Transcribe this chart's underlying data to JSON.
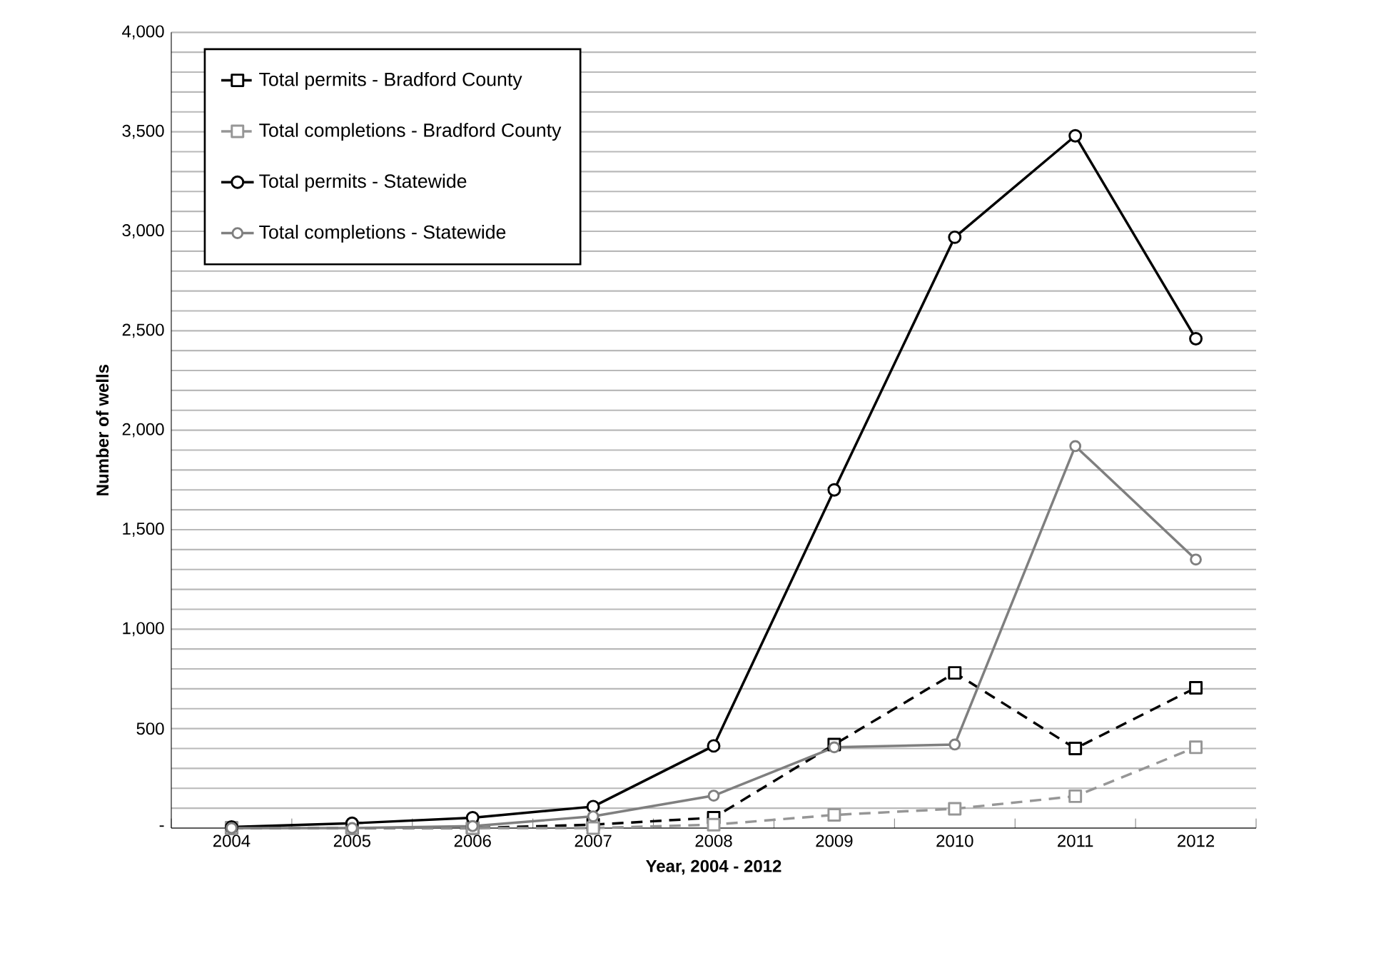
{
  "chart_data": {
    "type": "line",
    "xlabel": "Year, 2004 - 2012",
    "ylabel": "Number of wells",
    "categories": [
      "2004",
      "2005",
      "2006",
      "2007",
      "2008",
      "2009",
      "2010",
      "2011",
      "2012"
    ],
    "series": [
      {
        "name": "Total permits - Bradford County",
        "color": "#000000",
        "marker": "square",
        "line_style": "dashed",
        "values": [
          0,
          0,
          0,
          17,
          52,
          420,
          780,
          400,
          705
        ]
      },
      {
        "name": "Total completions - Bradford County",
        "color": "#969696",
        "marker": "square",
        "line_style": "dashed",
        "values": [
          0,
          0,
          0,
          0,
          17,
          66,
          97,
          160,
          406
        ]
      },
      {
        "name": "Total permits - Statewide",
        "color": "#000000",
        "marker": "circle",
        "line_style": "solid",
        "values": [
          5,
          24,
          52,
          108,
          413,
          1700,
          2970,
          3480,
          2460
        ]
      },
      {
        "name": "Total completions - Statewide",
        "color": "#7f7f7f",
        "marker": "circle",
        "line_style": "solid",
        "values": [
          0,
          0,
          10,
          59,
          163,
          406,
          420,
          1920,
          1350
        ]
      }
    ],
    "ylim": [
      0,
      4000
    ],
    "yticks": [
      {
        "value": 0,
        "label": "-"
      },
      {
        "value": 100,
        "label": null
      },
      {
        "value": 200,
        "label": null
      },
      {
        "value": 300,
        "label": null
      },
      {
        "value": 400,
        "label": null
      },
      {
        "value": 500,
        "label": "500"
      },
      {
        "value": 600,
        "label": null
      },
      {
        "value": 700,
        "label": null
      },
      {
        "value": 800,
        "label": null
      },
      {
        "value": 900,
        "label": null
      },
      {
        "value": 1000,
        "label": "1,000"
      },
      {
        "value": 1100,
        "label": null
      },
      {
        "value": 1200,
        "label": null
      },
      {
        "value": 1300,
        "label": null
      },
      {
        "value": 1400,
        "label": null
      },
      {
        "value": 1500,
        "label": "1,500"
      },
      {
        "value": 1600,
        "label": null
      },
      {
        "value": 1700,
        "label": null
      },
      {
        "value": 1800,
        "label": null
      },
      {
        "value": 1900,
        "label": null
      },
      {
        "value": 2000,
        "label": "2,000"
      },
      {
        "value": 2100,
        "label": null
      },
      {
        "value": 2200,
        "label": null
      },
      {
        "value": 2300,
        "label": null
      },
      {
        "value": 2400,
        "label": null
      },
      {
        "value": 2500,
        "label": "2,500"
      },
      {
        "value": 2600,
        "label": null
      },
      {
        "value": 2700,
        "label": null
      },
      {
        "value": 2800,
        "label": null
      },
      {
        "value": 2900,
        "label": null
      },
      {
        "value": 3000,
        "label": "3,000"
      },
      {
        "value": 3100,
        "label": null
      },
      {
        "value": 3200,
        "label": null
      },
      {
        "value": 3300,
        "label": null
      },
      {
        "value": 3400,
        "label": null
      },
      {
        "value": 3500,
        "label": "3,500"
      },
      {
        "value": 3600,
        "label": null
      },
      {
        "value": 3700,
        "label": null
      },
      {
        "value": 3800,
        "label": null
      },
      {
        "value": 3900,
        "label": null
      },
      {
        "value": 4000,
        "label": "4,000"
      }
    ],
    "grid": "y",
    "legend": "top left"
  }
}
